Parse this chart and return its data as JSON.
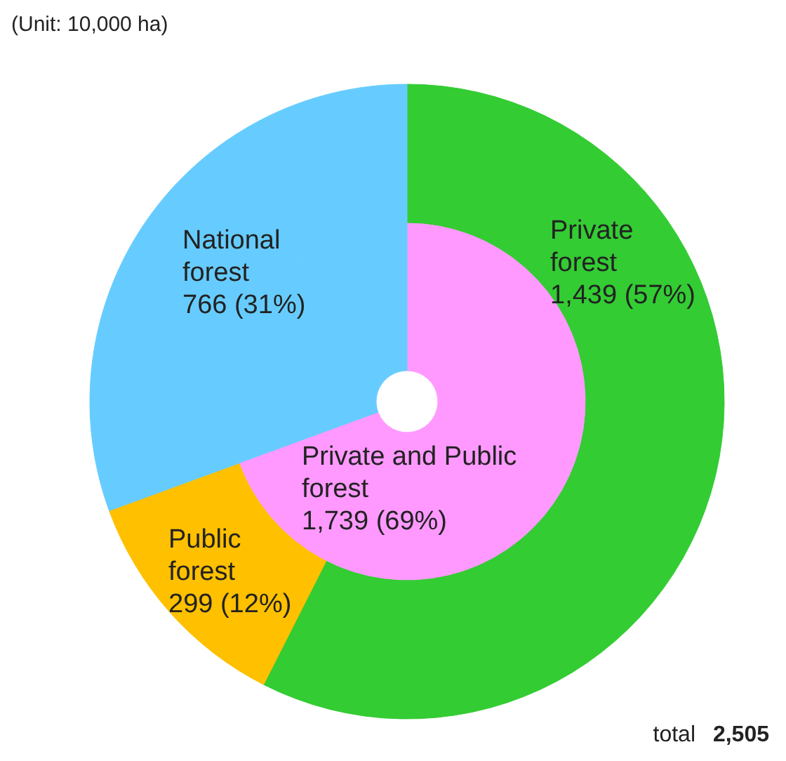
{
  "chart_data": [
    {
      "type": "donut",
      "title": "(Unit: 10,000 ha)",
      "categories": [
        "Private forest",
        "Public forest",
        "National forest"
      ],
      "values": [
        1439,
        299,
        766
      ],
      "colors": [
        "#33cc33",
        "#ffc000",
        "#66ccff"
      ],
      "value_labels": [
        "1,439 (57%)",
        "299 (12%)",
        "766 (31%)"
      ],
      "annotations": [
        "total 2,505"
      ]
    },
    {
      "type": "donut",
      "categories": [
        "Private and Public forest",
        null
      ],
      "values": [
        1739,
        766
      ],
      "colors": [
        "#ff99ff",
        "#66ccff"
      ],
      "value_labels": [
        "1,739 (69%)",
        null
      ]
    }
  ]
}
